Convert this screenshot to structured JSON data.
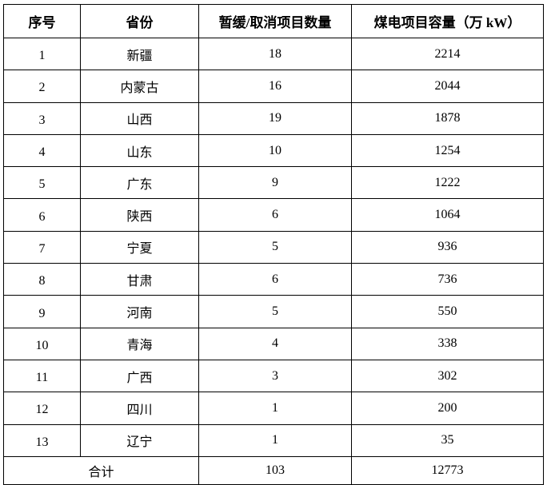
{
  "headers": [
    "序号",
    "省份",
    "暂缓/取消项目数量",
    "煤电项目容量（万 kW）"
  ],
  "rows": [
    {
      "no": "1",
      "province": "新疆",
      "count": "18",
      "capacity": "2214"
    },
    {
      "no": "2",
      "province": "内蒙古",
      "count": "16",
      "capacity": "2044"
    },
    {
      "no": "3",
      "province": "山西",
      "count": "19",
      "capacity": "1878"
    },
    {
      "no": "4",
      "province": "山东",
      "count": "10",
      "capacity": "1254"
    },
    {
      "no": "5",
      "province": "广东",
      "count": "9",
      "capacity": "1222"
    },
    {
      "no": "6",
      "province": "陕西",
      "count": "6",
      "capacity": "1064"
    },
    {
      "no": "7",
      "province": "宁夏",
      "count": "5",
      "capacity": "936"
    },
    {
      "no": "8",
      "province": "甘肃",
      "count": "6",
      "capacity": "736"
    },
    {
      "no": "9",
      "province": "河南",
      "count": "5",
      "capacity": "550"
    },
    {
      "no": "10",
      "province": "青海",
      "count": "4",
      "capacity": "338"
    },
    {
      "no": "11",
      "province": "广西",
      "count": "3",
      "capacity": "302"
    },
    {
      "no": "12",
      "province": "四川",
      "count": "1",
      "capacity": "200"
    },
    {
      "no": "13",
      "province": "辽宁",
      "count": "1",
      "capacity": "35"
    }
  ],
  "total": {
    "label": "合计",
    "count": "103",
    "capacity": "12773"
  }
}
